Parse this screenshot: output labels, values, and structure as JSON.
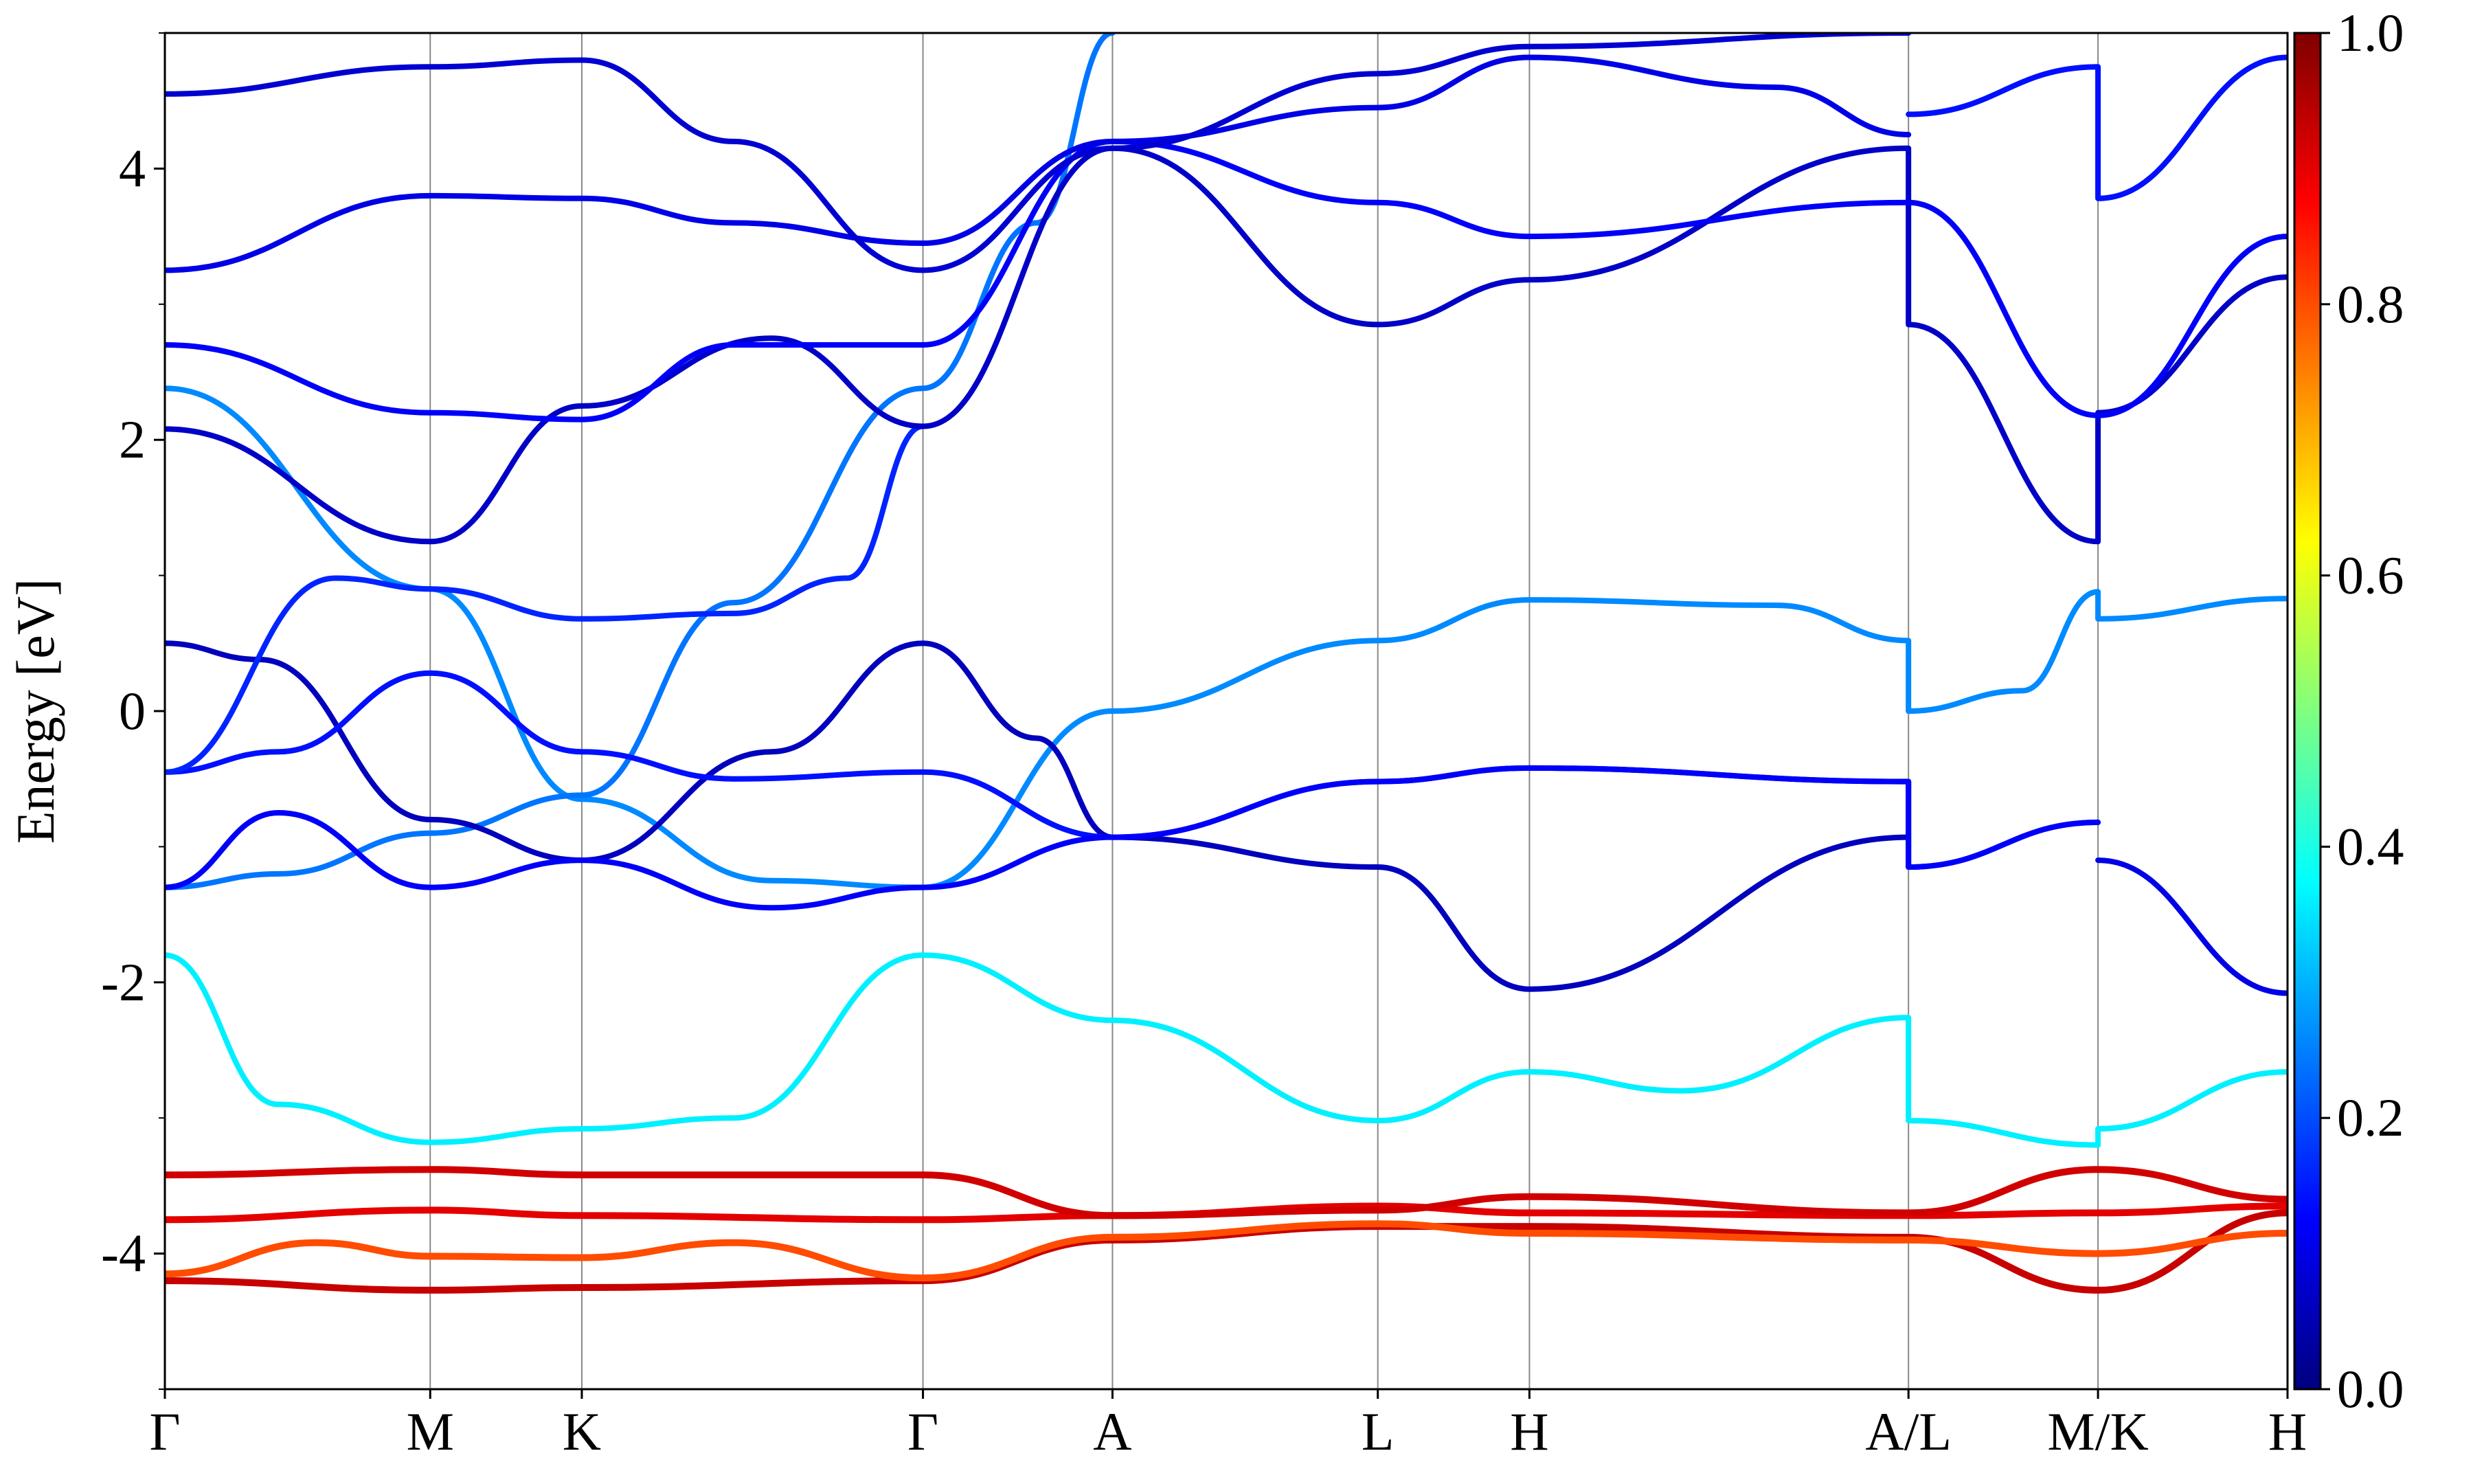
{
  "chart_data": {
    "type": "line",
    "ylabel": "Energy [eV]",
    "ylim": [
      -5,
      5
    ],
    "y_ticks": [
      4,
      2,
      0,
      -2,
      -4
    ],
    "y_tick_labels": [
      "4",
      "2",
      "0",
      "-2",
      "-4"
    ],
    "x_path_points": [
      0,
      1.4,
      2.2,
      4.0,
      5.0,
      6.4,
      7.2,
      9.2,
      10.2,
      11.2
    ],
    "k_labels": [
      "Γ",
      "M",
      "K",
      "Γ",
      "A",
      "L",
      "H",
      "A/L",
      "M/K",
      "H"
    ],
    "colorbar": {
      "range": [
        0.0,
        1.0
      ],
      "ticks": [
        0.0,
        0.2,
        0.4,
        0.6,
        0.8,
        1.0
      ],
      "tick_labels": [
        "0.0",
        "0.2",
        "0.4",
        "0.6",
        "0.8",
        "1.0"
      ],
      "colormap": "jet"
    },
    "bands": [
      {
        "name": "",
        "w": 0.93,
        "x": [
          0,
          1.4,
          2.2,
          4.0,
          5.0,
          6.4,
          7.2,
          9.2,
          10.2,
          11.2
        ],
        "y": [
          -4.2,
          -4.27,
          -4.25,
          -4.2,
          -3.9,
          -3.8,
          -3.8,
          -3.88,
          -4.27,
          -3.7
        ]
      },
      {
        "name": "",
        "w": 0.8,
        "x": [
          0,
          0.8,
          1.4,
          2.2,
          3.0,
          4.0,
          5.0,
          6.4,
          7.2,
          9.2,
          10.2,
          11.2
        ],
        "y": [
          -4.15,
          -3.92,
          -4.02,
          -4.03,
          -3.92,
          -4.18,
          -3.88,
          -3.78,
          -3.85,
          -3.9,
          -4.0,
          -3.85
        ]
      },
      {
        "name": "",
        "w": 0.9,
        "x": [
          0,
          1.4,
          2.2,
          4.0,
          5.0,
          6.4,
          7.2,
          9.2,
          10.2,
          11.2
        ],
        "y": [
          -3.75,
          -3.68,
          -3.72,
          -3.75,
          -3.72,
          -3.65,
          -3.7,
          -3.72,
          -3.7,
          -3.65
        ]
      },
      {
        "name": "",
        "w": 0.92,
        "x": [
          0,
          1.4,
          2.2,
          4.0,
          5.0,
          6.4,
          7.2,
          9.2,
          10.2,
          11.2
        ],
        "y": [
          -3.42,
          -3.38,
          -3.42,
          -3.42,
          -3.72,
          -3.68,
          -3.58,
          -3.7,
          -3.38,
          -3.6
        ]
      },
      {
        "name": "",
        "w": 0.36,
        "x": [
          0,
          0.6,
          1.4,
          2.2,
          3.0,
          4.0,
          5.0,
          6.4,
          7.2,
          8.0,
          9.2,
          9.2,
          10.2,
          10.2,
          11.2
        ],
        "y": [
          -1.8,
          -2.9,
          -3.18,
          -3.08,
          -3.0,
          -1.8,
          -2.28,
          -3.02,
          -2.66,
          -2.8,
          -2.26,
          -3.02,
          -3.2,
          -3.08,
          -2.66
        ]
      },
      {
        "name": "",
        "w": 0.26,
        "x": [
          0,
          1.4,
          2.2,
          3.2,
          4.0,
          5.0,
          6.4,
          7.2,
          8.5,
          9.2,
          9.2,
          9.8,
          10.2,
          10.2,
          11.2
        ],
        "y": [
          2.38,
          0.9,
          -0.65,
          -1.25,
          -1.3,
          0.0,
          0.52,
          0.82,
          0.78,
          0.52,
          0.0,
          0.15,
          0.88,
          0.68,
          0.83
        ]
      },
      {
        "name": "",
        "w": 0.24,
        "x": [
          0,
          0.6,
          1.4,
          2.2,
          3.0,
          4.0,
          4.6,
          5.0
        ],
        "y": [
          -1.3,
          -1.2,
          -0.9,
          -0.62,
          0.8,
          2.38,
          3.6,
          5.0
        ]
      },
      {
        "name": "",
        "w": 0.06,
        "x": [
          0,
          0.5,
          1.4,
          2.2,
          3.2,
          4.0,
          4.6,
          5.0,
          6.4,
          7.2,
          9.2
        ],
        "y": [
          0.5,
          0.38,
          -0.8,
          -1.1,
          -0.3,
          0.5,
          -0.2,
          -0.93,
          -1.15,
          -2.05,
          -0.93
        ]
      },
      {
        "name": "",
        "w": 0.14,
        "x": [
          0,
          0.6,
          1.4,
          2.2,
          3.0,
          4.0,
          5.0,
          6.4,
          7.2,
          9.2,
          9.2,
          10.2
        ],
        "y": [
          -0.45,
          -0.3,
          0.28,
          -0.3,
          -0.5,
          -0.45,
          -0.93,
          -0.52,
          -0.42,
          -0.52,
          -1.15,
          -0.82
        ]
      },
      {
        "name": "",
        "w": 0.12,
        "x": [
          0,
          0.6,
          1.4,
          2.2,
          3.2,
          4.0,
          5.0,
          6.4,
          7.2,
          9.2,
          9.2,
          10.2
        ],
        "y": [
          -1.3,
          -0.75,
          -1.3,
          -1.1,
          -1.45,
          -1.3,
          -0.93,
          -0.52,
          -0.42,
          -0.52,
          -1.15,
          -0.82
        ]
      },
      {
        "name": "",
        "w": 0.1,
        "x": [
          10.2,
          11.2
        ],
        "y": [
          -1.1,
          -2.08
        ]
      },
      {
        "name": "",
        "w": 0.16,
        "x": [
          0,
          0.9,
          1.4,
          2.2,
          3.0,
          3.6,
          4.0
        ],
        "y": [
          -0.45,
          0.98,
          0.9,
          0.68,
          0.72,
          0.98,
          2.1
        ]
      },
      {
        "name": "",
        "w": 0.07,
        "x": [
          0,
          1.4,
          2.2,
          3.2,
          4.0,
          5.0,
          6.4,
          7.2,
          9.2,
          9.2,
          10.2,
          10.2,
          11.2
        ],
        "y": [
          2.08,
          1.25,
          2.25,
          2.75,
          2.1,
          4.15,
          2.85,
          3.18,
          4.15,
          2.85,
          1.25,
          2.2,
          3.2
        ]
      },
      {
        "name": "",
        "w": 0.12,
        "x": [
          0,
          1.4,
          2.2,
          3.0,
          4.0,
          5.0,
          6.4,
          7.2,
          9.2,
          10.2,
          11.2
        ],
        "y": [
          2.7,
          2.2,
          2.15,
          2.7,
          2.7,
          4.2,
          3.75,
          3.5,
          3.75,
          2.18,
          3.5
        ]
      },
      {
        "name": "",
        "w": 0.1,
        "x": [
          0,
          1.4,
          2.2,
          3.0,
          4.0,
          5.0,
          6.4,
          7.2,
          8.5,
          9.2
        ],
        "y": [
          3.25,
          3.8,
          3.78,
          3.6,
          3.45,
          4.2,
          4.45,
          4.82,
          4.6,
          4.25
        ]
      },
      {
        "name": "",
        "w": 0.08,
        "x": [
          0,
          1.4,
          2.2,
          3.0,
          4.0,
          5.0,
          6.4,
          7.2,
          9.2
        ],
        "y": [
          4.55,
          4.75,
          4.8,
          4.2,
          3.25,
          4.15,
          4.7,
          4.9,
          5.0
        ]
      },
      {
        "name": "",
        "w": 0.14,
        "x": [
          9.2,
          10.2,
          10.2,
          11.2
        ],
        "y": [
          4.4,
          4.75,
          3.78,
          4.82
        ]
      }
    ]
  }
}
